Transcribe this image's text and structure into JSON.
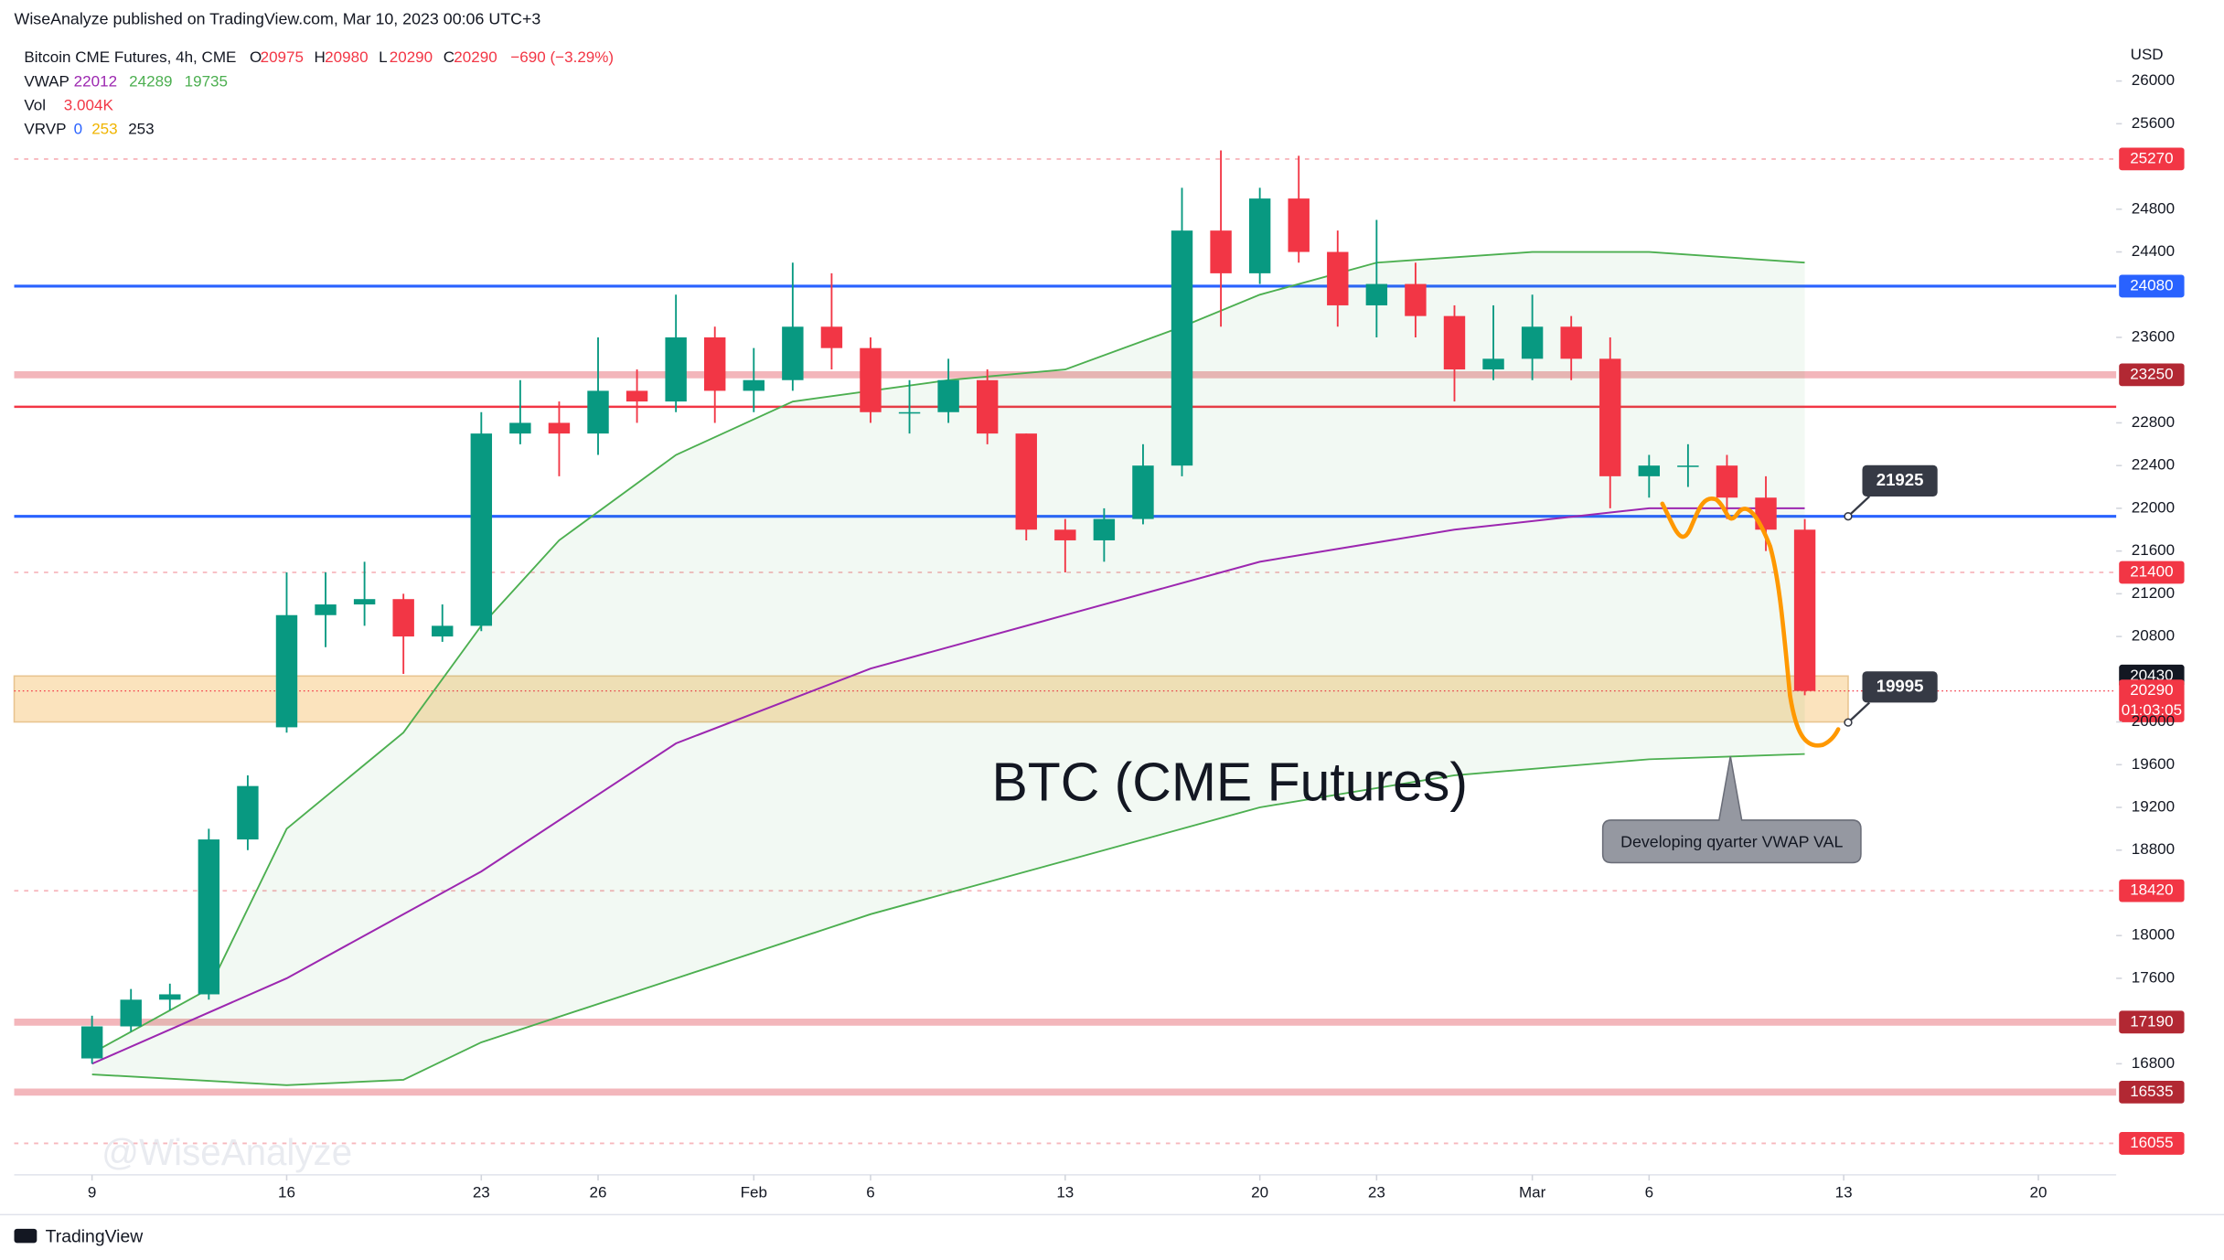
{
  "chart_data": {
    "type": "candlestick",
    "header": "WiseAnalyze published on TradingView.com, Mar 10, 2023 00:06 UTC+3",
    "title": "BTC (CME Futures)",
    "annotation": "Developing qyarter VWAP VAL",
    "currency": "USD",
    "watermark": "@WiseAnalyze",
    "brand": "TradingView",
    "legend": {
      "symbol": "Bitcoin CME Futures, 4h, CME",
      "ohlc": [
        {
          "label": "O",
          "value": "20975"
        },
        {
          "label": "H",
          "value": "20980"
        },
        {
          "label": "L",
          "value": "20290"
        },
        {
          "label": "C",
          "value": "20290"
        }
      ],
      "change": "−690 (−3.29%)",
      "rows": [
        {
          "name": "VWAP",
          "items": [
            {
              "text": "22012",
              "color": "#9c27b0"
            },
            {
              "text": "24289",
              "color": "#4caf50"
            },
            {
              "text": "19735",
              "color": "#4caf50"
            }
          ]
        },
        {
          "name": "Vol",
          "items": [
            {
              "text": "3.004K",
              "color": "#f23645"
            }
          ]
        },
        {
          "name": "VRVP",
          "items": [
            {
              "text": "0",
              "color": "#2962ff"
            },
            {
              "text": "253",
              "color": "#f0b400"
            },
            {
              "text": "253",
              "color": "#131722"
            }
          ]
        }
      ]
    },
    "xlim": [
      -2,
      52
    ],
    "ylim": [
      15760,
      26360
    ],
    "xticks": [
      {
        "value": 0,
        "label": "9"
      },
      {
        "value": 5,
        "label": "16"
      },
      {
        "value": 10,
        "label": "23"
      },
      {
        "value": 13,
        "label": "26"
      },
      {
        "value": 17,
        "label": "Feb"
      },
      {
        "value": 20,
        "label": "6"
      },
      {
        "value": 25,
        "label": "13"
      },
      {
        "value": 30,
        "label": "20"
      },
      {
        "value": 33,
        "label": "23"
      },
      {
        "value": 37,
        "label": "Mar"
      },
      {
        "value": 40,
        "label": "6"
      },
      {
        "value": 45,
        "label": "13"
      },
      {
        "value": 50,
        "label": "20"
      }
    ],
    "yticks": [
      26000,
      25600,
      24800,
      24400,
      23600,
      22800,
      22400,
      22000,
      21600,
      21200,
      20800,
      20000,
      19600,
      19200,
      18800,
      18000,
      17600,
      16800
    ],
    "up_color": "#089981",
    "down_color": "#f23645",
    "x": [
      0,
      1,
      2,
      3,
      4,
      5,
      6,
      7,
      8,
      9,
      10,
      11,
      12,
      13,
      14,
      15,
      16,
      17,
      18,
      19,
      20,
      21,
      22,
      23,
      24,
      25,
      26,
      27,
      28,
      29,
      30,
      31,
      32,
      33,
      34,
      35,
      36,
      37,
      38,
      39,
      40,
      41,
      42,
      43,
      44
    ],
    "open": [
      16850,
      17150,
      17400,
      17450,
      18900,
      19950,
      21000,
      21100,
      21150,
      20800,
      20900,
      22700,
      22800,
      22700,
      23100,
      23000,
      23600,
      23100,
      23200,
      23700,
      23500,
      22900,
      22900,
      23200,
      22700,
      21800,
      21700,
      21900,
      22400,
      24600,
      24200,
      24900,
      24400,
      23900,
      24100,
      23800,
      23300,
      23400,
      23700,
      23400,
      22300,
      22400,
      22400,
      22100,
      21800
    ],
    "high": [
      17250,
      17500,
      17550,
      19000,
      19500,
      21400,
      21400,
      21500,
      21200,
      21100,
      22900,
      23200,
      23000,
      23600,
      23300,
      24000,
      23700,
      23500,
      24300,
      24200,
      23600,
      23200,
      23400,
      23300,
      22700,
      21900,
      22000,
      22600,
      25000,
      25350,
      25000,
      25300,
      24600,
      24700,
      24300,
      23900,
      23900,
      24000,
      23800,
      23600,
      22500,
      22600,
      22500,
      22300,
      21900
    ],
    "low": [
      16800,
      17100,
      17300,
      17400,
      18800,
      19900,
      20700,
      20900,
      20450,
      20750,
      20850,
      22600,
      22300,
      22500,
      22800,
      22900,
      22800,
      22900,
      23100,
      23300,
      22800,
      22700,
      22800,
      22600,
      21700,
      21400,
      21500,
      21850,
      22300,
      23700,
      24100,
      24300,
      23700,
      23600,
      23600,
      23000,
      23200,
      23200,
      23200,
      22000,
      22100,
      22200,
      21900,
      21600,
      20250
    ],
    "close": [
      17150,
      17400,
      17450,
      18900,
      19400,
      21000,
      21100,
      21150,
      20800,
      20900,
      22700,
      22800,
      22700,
      23100,
      23000,
      23600,
      23100,
      23200,
      23700,
      23500,
      22900,
      22900,
      23200,
      22700,
      21800,
      21700,
      21900,
      22400,
      24600,
      24200,
      24900,
      24400,
      23900,
      24100,
      23800,
      23300,
      23400,
      23700,
      23400,
      22300,
      22400,
      22400,
      22100,
      21800,
      20290
    ],
    "vwap": {
      "name": "VWAP",
      "color": "#9c27b0",
      "x": [
        0,
        5,
        10,
        15,
        20,
        25,
        30,
        35,
        40,
        44
      ],
      "values": [
        16800,
        17600,
        18600,
        19800,
        20500,
        21000,
        21500,
        21800,
        22000,
        22000
      ]
    },
    "bands": [
      {
        "color": "#4caf50",
        "x": [
          0,
          3,
          5,
          8,
          10,
          12,
          15,
          18,
          22,
          25,
          28,
          30,
          33,
          37,
          40,
          44
        ],
        "values": [
          16900,
          17500,
          19000,
          19900,
          20900,
          21700,
          22500,
          23000,
          23200,
          23300,
          23700,
          24000,
          24300,
          24400,
          24400,
          24300
        ]
      },
      {
        "color": "#4caf50",
        "x": [
          0,
          5,
          8,
          10,
          15,
          20,
          25,
          30,
          35,
          40,
          44
        ],
        "values": [
          16700,
          16600,
          16650,
          17000,
          17600,
          18200,
          18700,
          19200,
          19500,
          19650,
          19700
        ]
      }
    ],
    "zone": {
      "low": 20000,
      "high": 20430,
      "color": "#fbe3bd"
    },
    "levels": [
      {
        "value": 25270,
        "color": "#f7b7bd",
        "width": 1.2,
        "dash": "3 4",
        "tag_color": "#f23645"
      },
      {
        "value": 24080,
        "color": "#2962ff",
        "width": 2,
        "tag_color": "#2962ff"
      },
      {
        "value": 23250,
        "color": "#f3b6bb",
        "width": 5,
        "tag_color": "#b22833"
      },
      {
        "value": 22950,
        "color": "#f23645",
        "width": 1.6
      },
      {
        "value": 21925,
        "color": "#2962ff",
        "width": 2
      },
      {
        "value": 21400,
        "color": "#f7b7bd",
        "width": 1.2,
        "dash": "3 4",
        "tag_color": "#f23645"
      },
      {
        "value": 20430,
        "tag_color": "#131722"
      },
      {
        "value": 20290,
        "color": "#f23645",
        "width": 0.8,
        "dash": "1 2",
        "tag_color": "#f23645",
        "countdown": "01:03:05"
      },
      {
        "value": 18420,
        "color": "#f7b7bd",
        "width": 1.2,
        "dash": "3 4",
        "tag_color": "#f23645"
      },
      {
        "value": 17190,
        "color": "#f3b6bb",
        "width": 5,
        "tag_color": "#b22833"
      },
      {
        "value": 16535,
        "color": "#f3b6bb",
        "width": 5,
        "tag_color": "#b22833"
      },
      {
        "value": 16055,
        "color": "#f7b7bd",
        "width": 1.2,
        "dash": "3 4",
        "tag_color": "#f23645"
      }
    ],
    "callouts": [
      21925,
      19995
    ]
  }
}
